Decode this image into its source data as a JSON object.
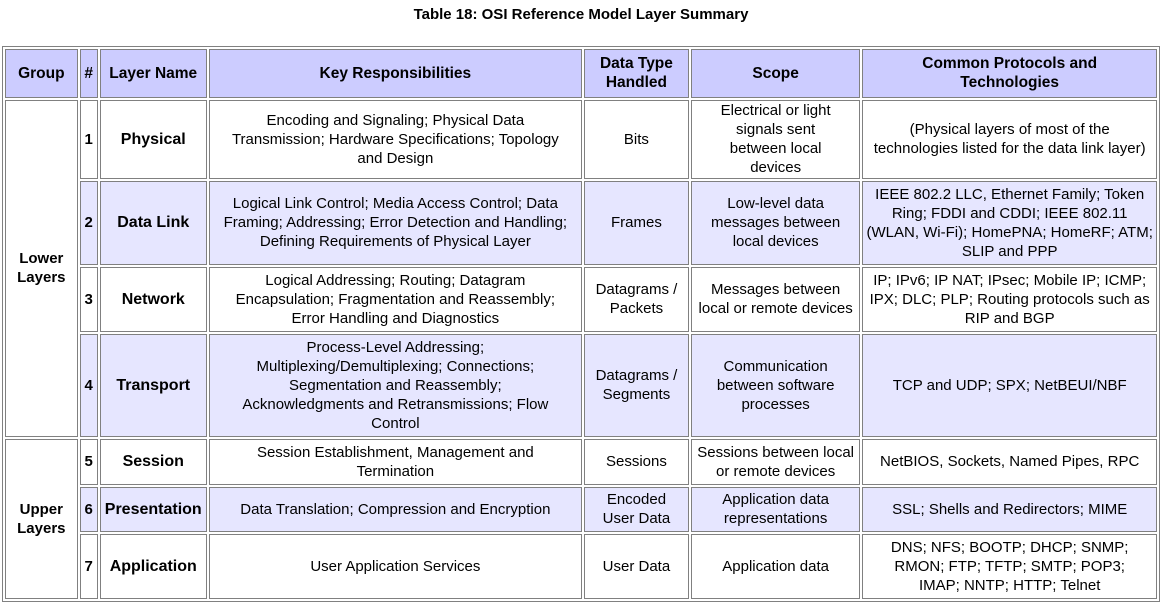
{
  "caption": "Table 18: OSI Reference Model Layer Summary",
  "headers": {
    "group": "Group",
    "number": "#",
    "layer_name": "Layer Name",
    "key_responsibilities": "Key Responsibilities",
    "data_type": "Data Type Handled",
    "scope": "Scope",
    "protocols": "Common Protocols and Technologies"
  },
  "groups": {
    "lower": "Lower Layers",
    "upper": "Upper Layers"
  },
  "rows": [
    {
      "number": "1",
      "name": "Physical",
      "responsibilities": "Encoding and Signaling; Physical Data Transmission; Hardware Specifications; Topology and Design",
      "data_type": "Bits",
      "scope": "Electrical or light signals sent between local devices",
      "protocols": "(Physical layers of most of the technologies listed for the data link layer)"
    },
    {
      "number": "2",
      "name": "Data Link",
      "responsibilities": "Logical Link Control; Media Access Control; Data Framing; Addressing; Error Detection and Handling; Defining Requirements of Physical Layer",
      "data_type": "Frames",
      "scope": "Low-level data messages between local devices",
      "protocols": "IEEE 802.2 LLC, Ethernet Family; Token Ring; FDDI and CDDI; IEEE 802.11 (WLAN, Wi-Fi); HomePNA; HomeRF; ATM; SLIP and PPP"
    },
    {
      "number": "3",
      "name": "Network",
      "responsibilities": "Logical Addressing; Routing; Datagram Encapsulation; Fragmentation and Reassembly; Error Handling and Diagnostics",
      "data_type": "Datagrams / Packets",
      "scope": "Messages between local or remote devices",
      "protocols": "IP; IPv6; IP NAT; IPsec; Mobile IP; ICMP; IPX; DLC; PLP; Routing protocols such as RIP and BGP"
    },
    {
      "number": "4",
      "name": "Transport",
      "responsibilities": "Process-Level Addressing; Multiplexing/Demultiplexing; Connections; Segmentation and Reassembly; Acknowledgments and Retransmissions; Flow Control",
      "data_type": "Datagrams / Segments",
      "scope": "Communication between software processes",
      "protocols": "TCP and UDP; SPX; NetBEUI/NBF"
    },
    {
      "number": "5",
      "name": "Session",
      "responsibilities": "Session Establishment, Management and Termination",
      "data_type": "Sessions",
      "scope": "Sessions between local or remote devices",
      "protocols": "NetBIOS, Sockets, Named Pipes, RPC"
    },
    {
      "number": "6",
      "name": "Presentation",
      "responsibilities": "Data Translation; Compression and Encryption",
      "data_type": "Encoded User Data",
      "scope": "Application data representations",
      "protocols": "SSL; Shells and Redirectors; MIME"
    },
    {
      "number": "7",
      "name": "Application",
      "responsibilities": "User Application Services",
      "data_type": "User Data",
      "scope": "Application data",
      "protocols": "DNS; NFS; BOOTP; DHCP; SNMP; RMON; FTP; TFTP; SMTP; POP3; IMAP; NNTP; HTTP; Telnet"
    }
  ]
}
